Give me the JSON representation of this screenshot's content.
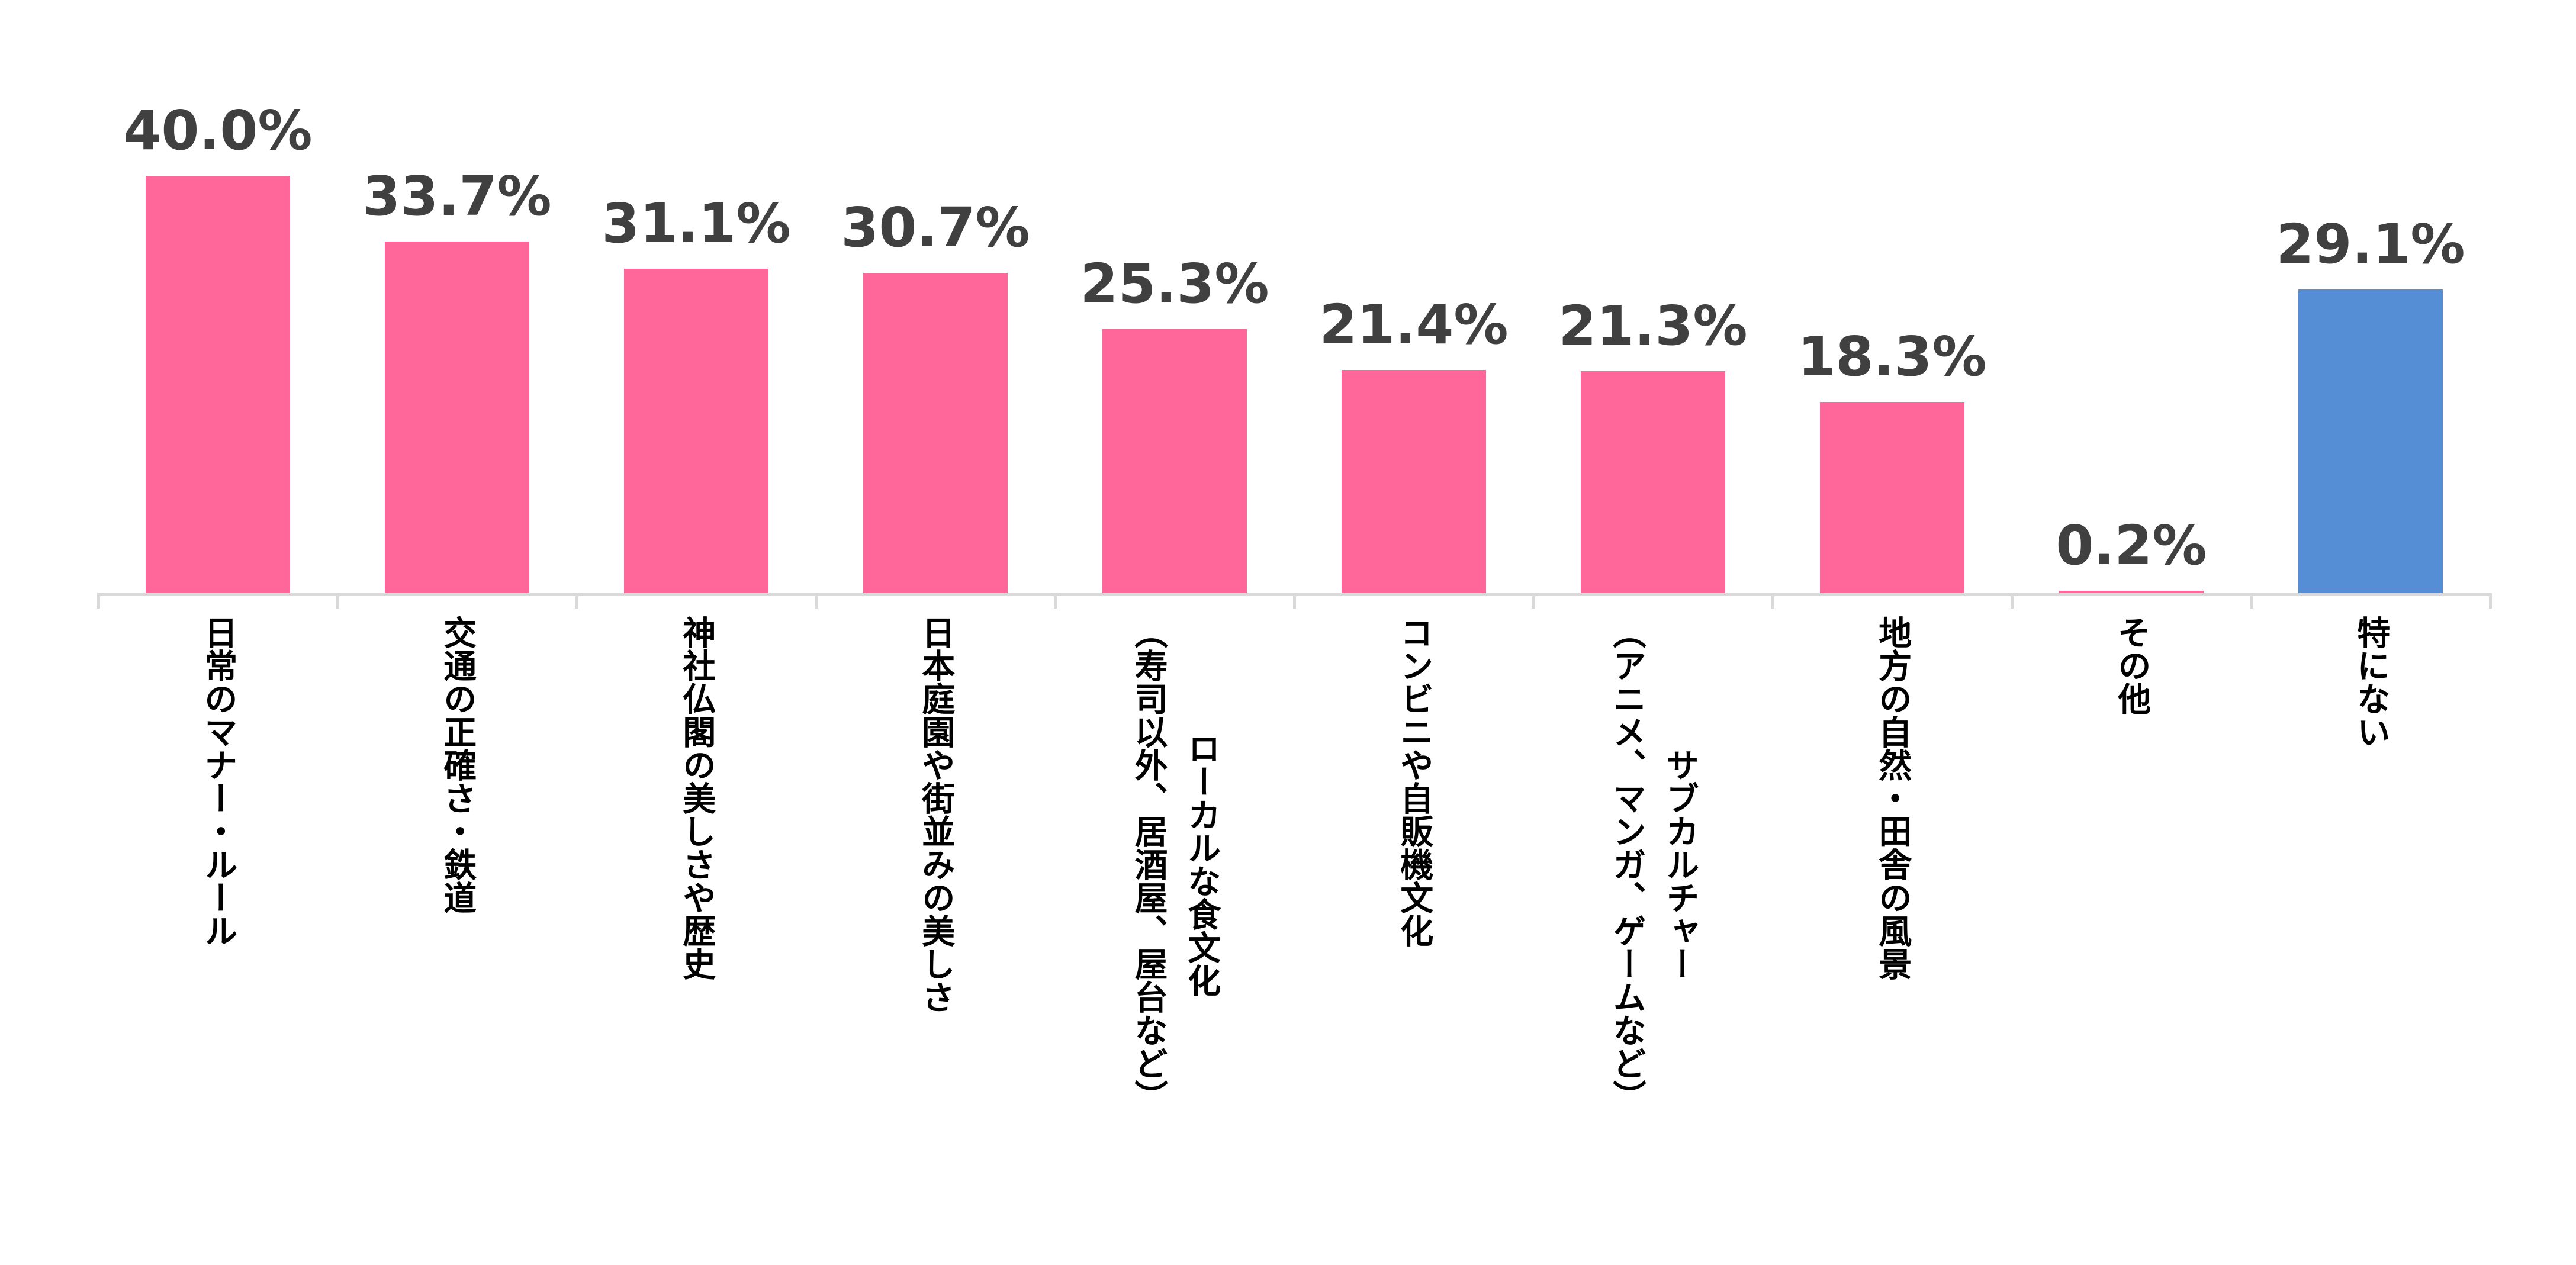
{
  "chart_data": {
    "type": "bar",
    "categories": [
      "日常のマナー・ルール",
      "交通の正確さ・鉄道",
      "神社仏閣の美しさや歴史",
      "日本庭園や街並みの美しさ",
      "ローカルな食文化\n（寿司以外、居酒屋、屋台など）",
      "コンビニや自販機文化",
      "サブカルチャー\n（アニメ、マンガ、ゲームなど）",
      "地方の自然・田舎の風景",
      "その他",
      "特にない"
    ],
    "values": [
      40.0,
      33.7,
      31.1,
      30.7,
      25.3,
      21.4,
      21.3,
      18.3,
      0.2,
      29.1
    ],
    "value_labels": [
      "40.0%",
      "33.7%",
      "31.1%",
      "30.7%",
      "25.3%",
      "21.4%",
      "21.3%",
      "18.3%",
      "0.2%",
      "29.1%"
    ],
    "bar_colors": [
      "#FF6699",
      "#FF6699",
      "#FF6699",
      "#FF6699",
      "#FF6699",
      "#FF6699",
      "#FF6699",
      "#FF6699",
      "#FF6699",
      "#558ED5"
    ],
    "label_color": "#404040",
    "title": "",
    "xlabel": "",
    "ylabel": "",
    "grid": false,
    "legend": "none"
  }
}
